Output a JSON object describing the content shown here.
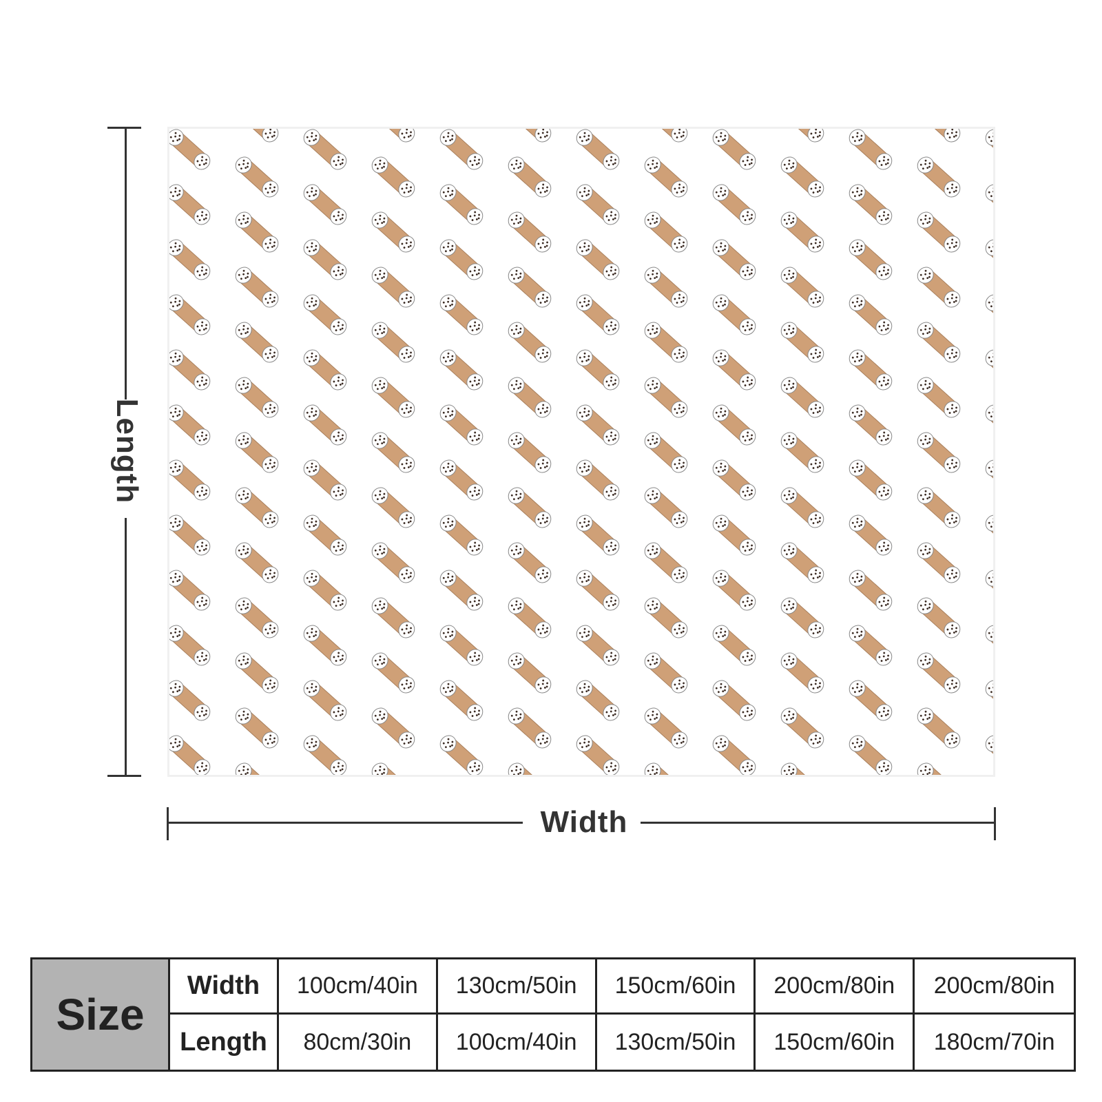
{
  "diagram": {
    "length_label": "Length",
    "width_label": "Width",
    "pattern_icon": "cannoli-icon"
  },
  "colors": {
    "shell": "#cfa077",
    "shell_outline": "#a87f5c",
    "cream": "#ffffff",
    "chips": "#3a2a22",
    "dimension_line": "#333333",
    "table_header_bg": "#b3b3b3",
    "table_border": "#222222"
  },
  "size_table": {
    "title": "Size",
    "rows": [
      {
        "label": "Width",
        "values": [
          "100cm/40in",
          "130cm/50in",
          "150cm/60in",
          "200cm/80in",
          "200cm/80in"
        ]
      },
      {
        "label": "Length",
        "values": [
          "80cm/30in",
          "100cm/40in",
          "130cm/50in",
          "150cm/60in",
          "180cm/70in"
        ]
      }
    ]
  }
}
